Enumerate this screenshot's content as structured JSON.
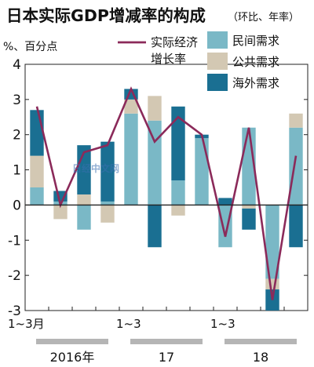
{
  "chart_data": {
    "type": "bar",
    "title": "日本实际GDP增减率的构成",
    "subtitle": "（环比、年率）",
    "ylabel": "%、百分点",
    "ylim": [
      -3,
      4
    ],
    "yticks": [
      4,
      3,
      2,
      1,
      0,
      -1,
      -2,
      -3
    ],
    "categories": [
      "2016Q1",
      "2016Q2",
      "2016Q3",
      "2016Q4",
      "2017Q1",
      "2017Q2",
      "2017Q3",
      "2017Q4",
      "2018Q1",
      "2018Q2",
      "2018Q3",
      "2018Q4"
    ],
    "x_tick_labels": [
      {
        "index": 0,
        "text": "1~3月"
      },
      {
        "index": 4,
        "text": "1~3"
      },
      {
        "index": 8,
        "text": "1~3"
      }
    ],
    "year_labels": [
      {
        "start": 0,
        "end": 3,
        "text": "2016年"
      },
      {
        "start": 4,
        "end": 7,
        "text": "17"
      },
      {
        "start": 8,
        "end": 11,
        "text": "18"
      }
    ],
    "series": [
      {
        "name": "民间需求",
        "kind": "bar",
        "color": "#7ab8c6",
        "values": [
          0.5,
          0.1,
          -0.7,
          0.1,
          2.6,
          2.4,
          0.7,
          1.9,
          -1.2,
          2.2,
          -2.1,
          2.2
        ]
      },
      {
        "name": "公共需求",
        "kind": "bar",
        "color": "#d3c8b3",
        "values": [
          0.9,
          -0.4,
          0.3,
          -0.5,
          0.4,
          0.7,
          -0.3,
          0.0,
          0.0,
          -0.1,
          -0.3,
          0.4
        ]
      },
      {
        "name": "海外需求",
        "kind": "bar",
        "color": "#1a6f92",
        "values": [
          1.3,
          0.3,
          1.4,
          1.7,
          0.3,
          -1.2,
          2.1,
          0.1,
          0.2,
          -0.6,
          -0.6,
          -1.2
        ]
      },
      {
        "name": "实际经济增长率",
        "kind": "line",
        "color": "#8b2a5a",
        "values": [
          2.8,
          0.0,
          1.5,
          1.7,
          3.3,
          1.8,
          2.5,
          2.0,
          -0.9,
          2.2,
          -2.7,
          1.4
        ]
      }
    ],
    "legend": {
      "line_label_lines": [
        "实际经济",
        "增长率"
      ]
    },
    "watermark": "日经中文网",
    "grid": false
  }
}
